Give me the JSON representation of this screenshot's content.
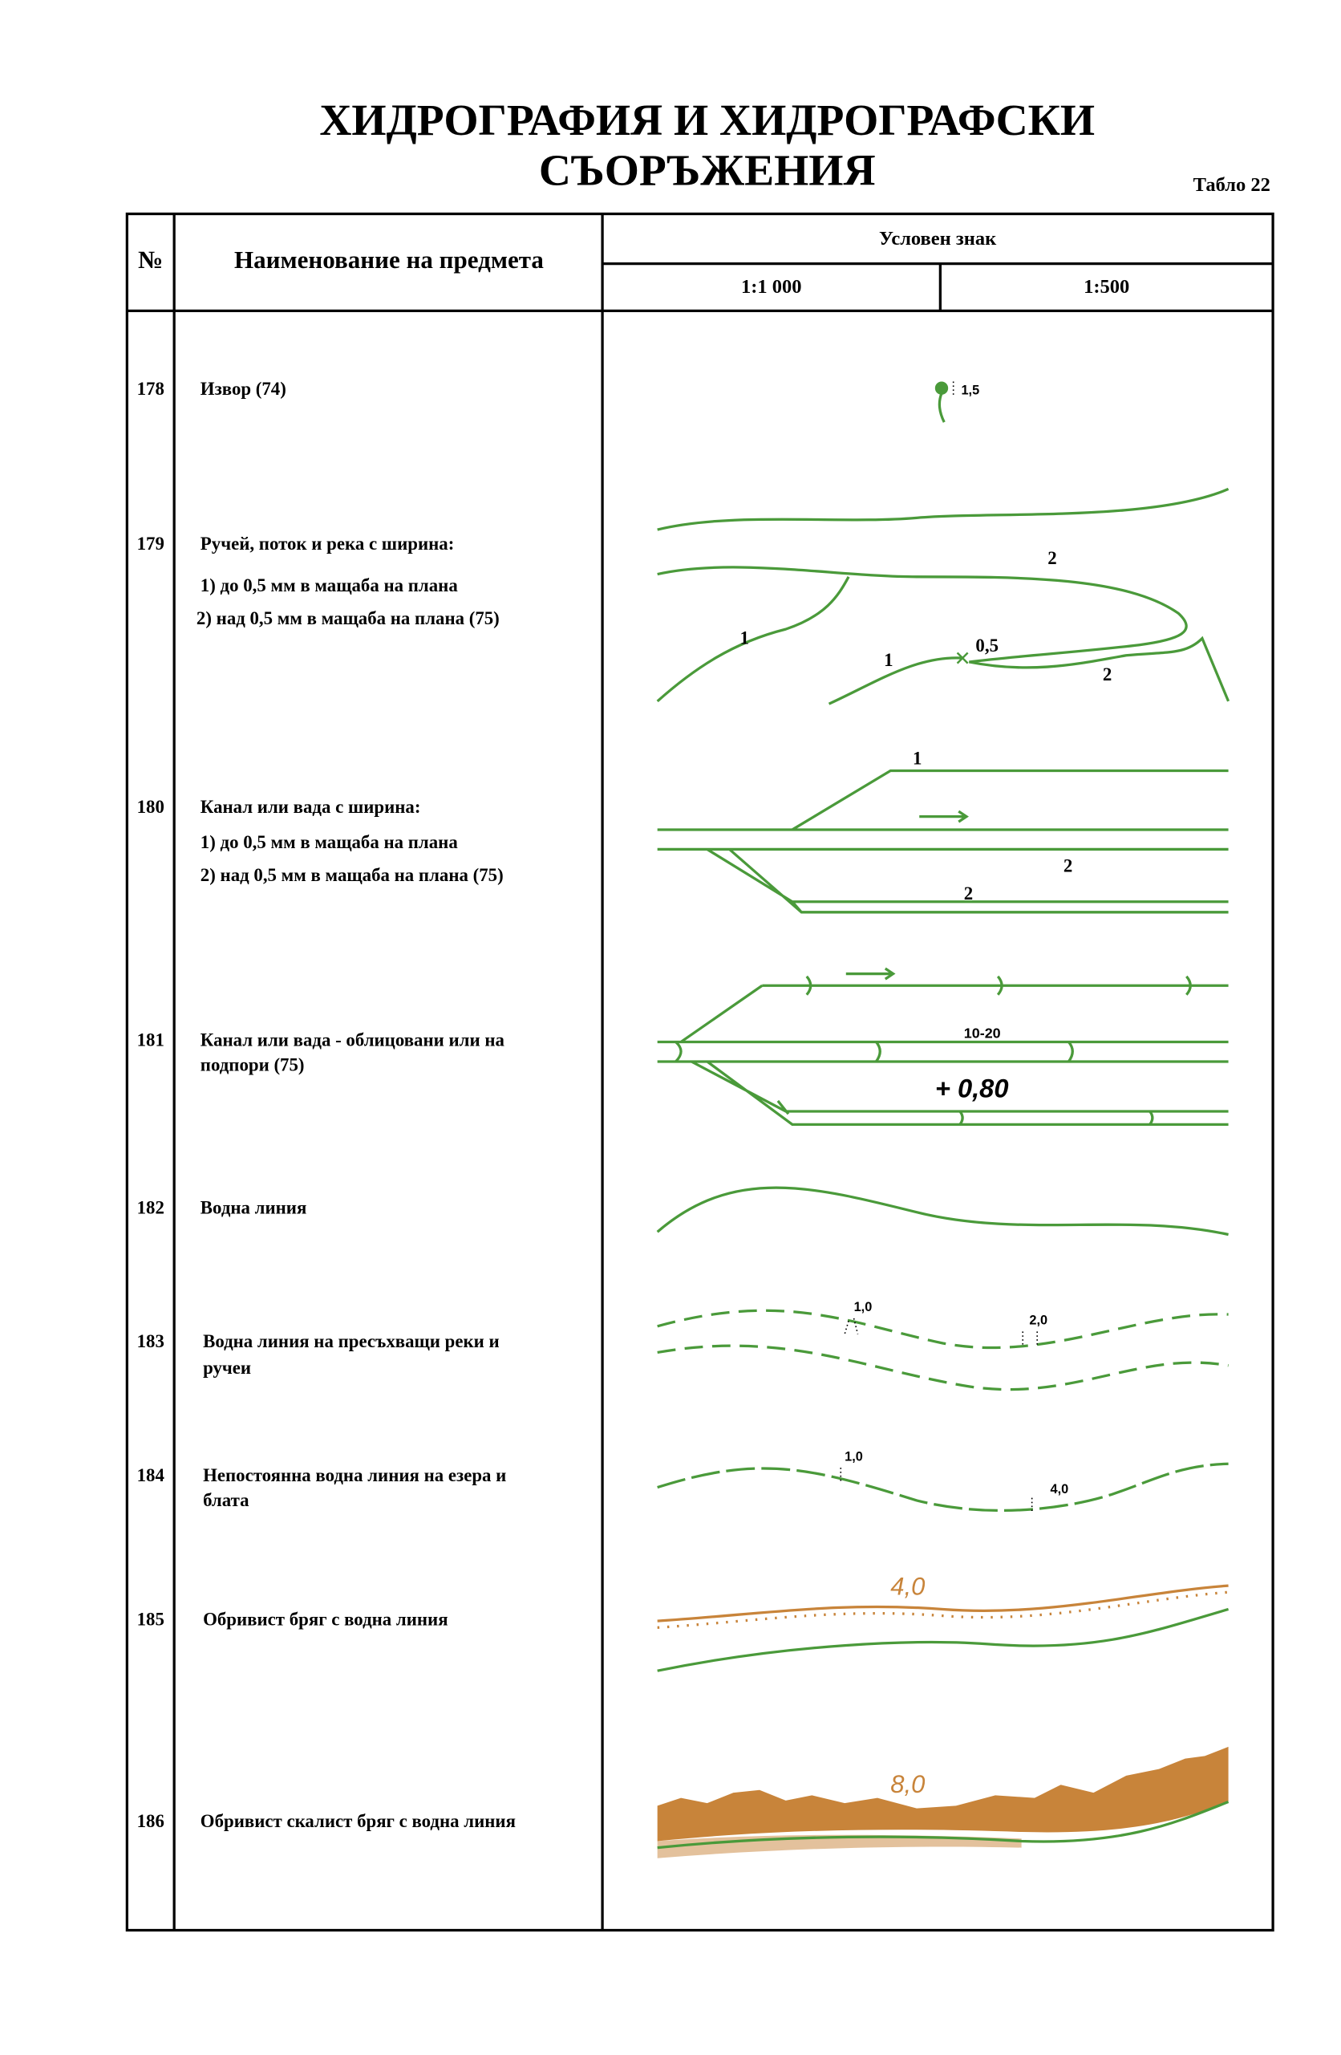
{
  "header": {
    "title": [
      "ХИДРОГРАФИЯ И ХИДРОГРАФСКИ",
      "СЪОРЪЖЕНИЯ"
    ],
    "tablo": "Табло 22"
  },
  "table": {
    "columns": {
      "number": "№",
      "name": "Наименование на предмета",
      "sign": "Условен знак",
      "scale1": "1:1 000",
      "scale2": "1:500"
    },
    "rows": [
      {
        "number": "178",
        "name": [
          "Извор (74)"
        ],
        "labels": [
          "1,5"
        ]
      },
      {
        "number": "179",
        "name": [
          "Ручей, поток и река с ширина:",
          "1) до 0,5 мм в мащаба на плана",
          "2) над 0,5 мм в мащаба на плана (75)"
        ],
        "labels": [
          "2",
          "1",
          "1",
          "0,5",
          "2"
        ]
      },
      {
        "number": "180",
        "name": [
          "Канал или вада с ширина:",
          "1) до 0,5 мм в мащаба на плана",
          "2) над 0,5 мм в мащаба на плана (75)"
        ],
        "labels": [
          "1",
          "2",
          "2"
        ]
      },
      {
        "number": "181",
        "name": [
          "Канал или вада - облицовани или на",
          "подпори (75)"
        ],
        "labels": [
          "10-20",
          "+ 0,80"
        ]
      },
      {
        "number": "182",
        "name": [
          "Водна линия"
        ],
        "labels": []
      },
      {
        "number": "183",
        "name": [
          "Водна линия на пресъхващи реки и",
          "ручеи"
        ],
        "labels": [
          "1,0",
          "2,0"
        ]
      },
      {
        "number": "184",
        "name": [
          "Непостоянна водна линия на езера и",
          "блата"
        ],
        "labels": [
          "1,0",
          "4,0"
        ]
      },
      {
        "number": "185",
        "name": [
          "Обривист бряг с водна линия"
        ],
        "labels": [
          "4,0"
        ]
      },
      {
        "number": "186",
        "name": [
          "Обривист скалист бряг с водна линия"
        ],
        "labels": [
          "8,0"
        ]
      }
    ]
  }
}
